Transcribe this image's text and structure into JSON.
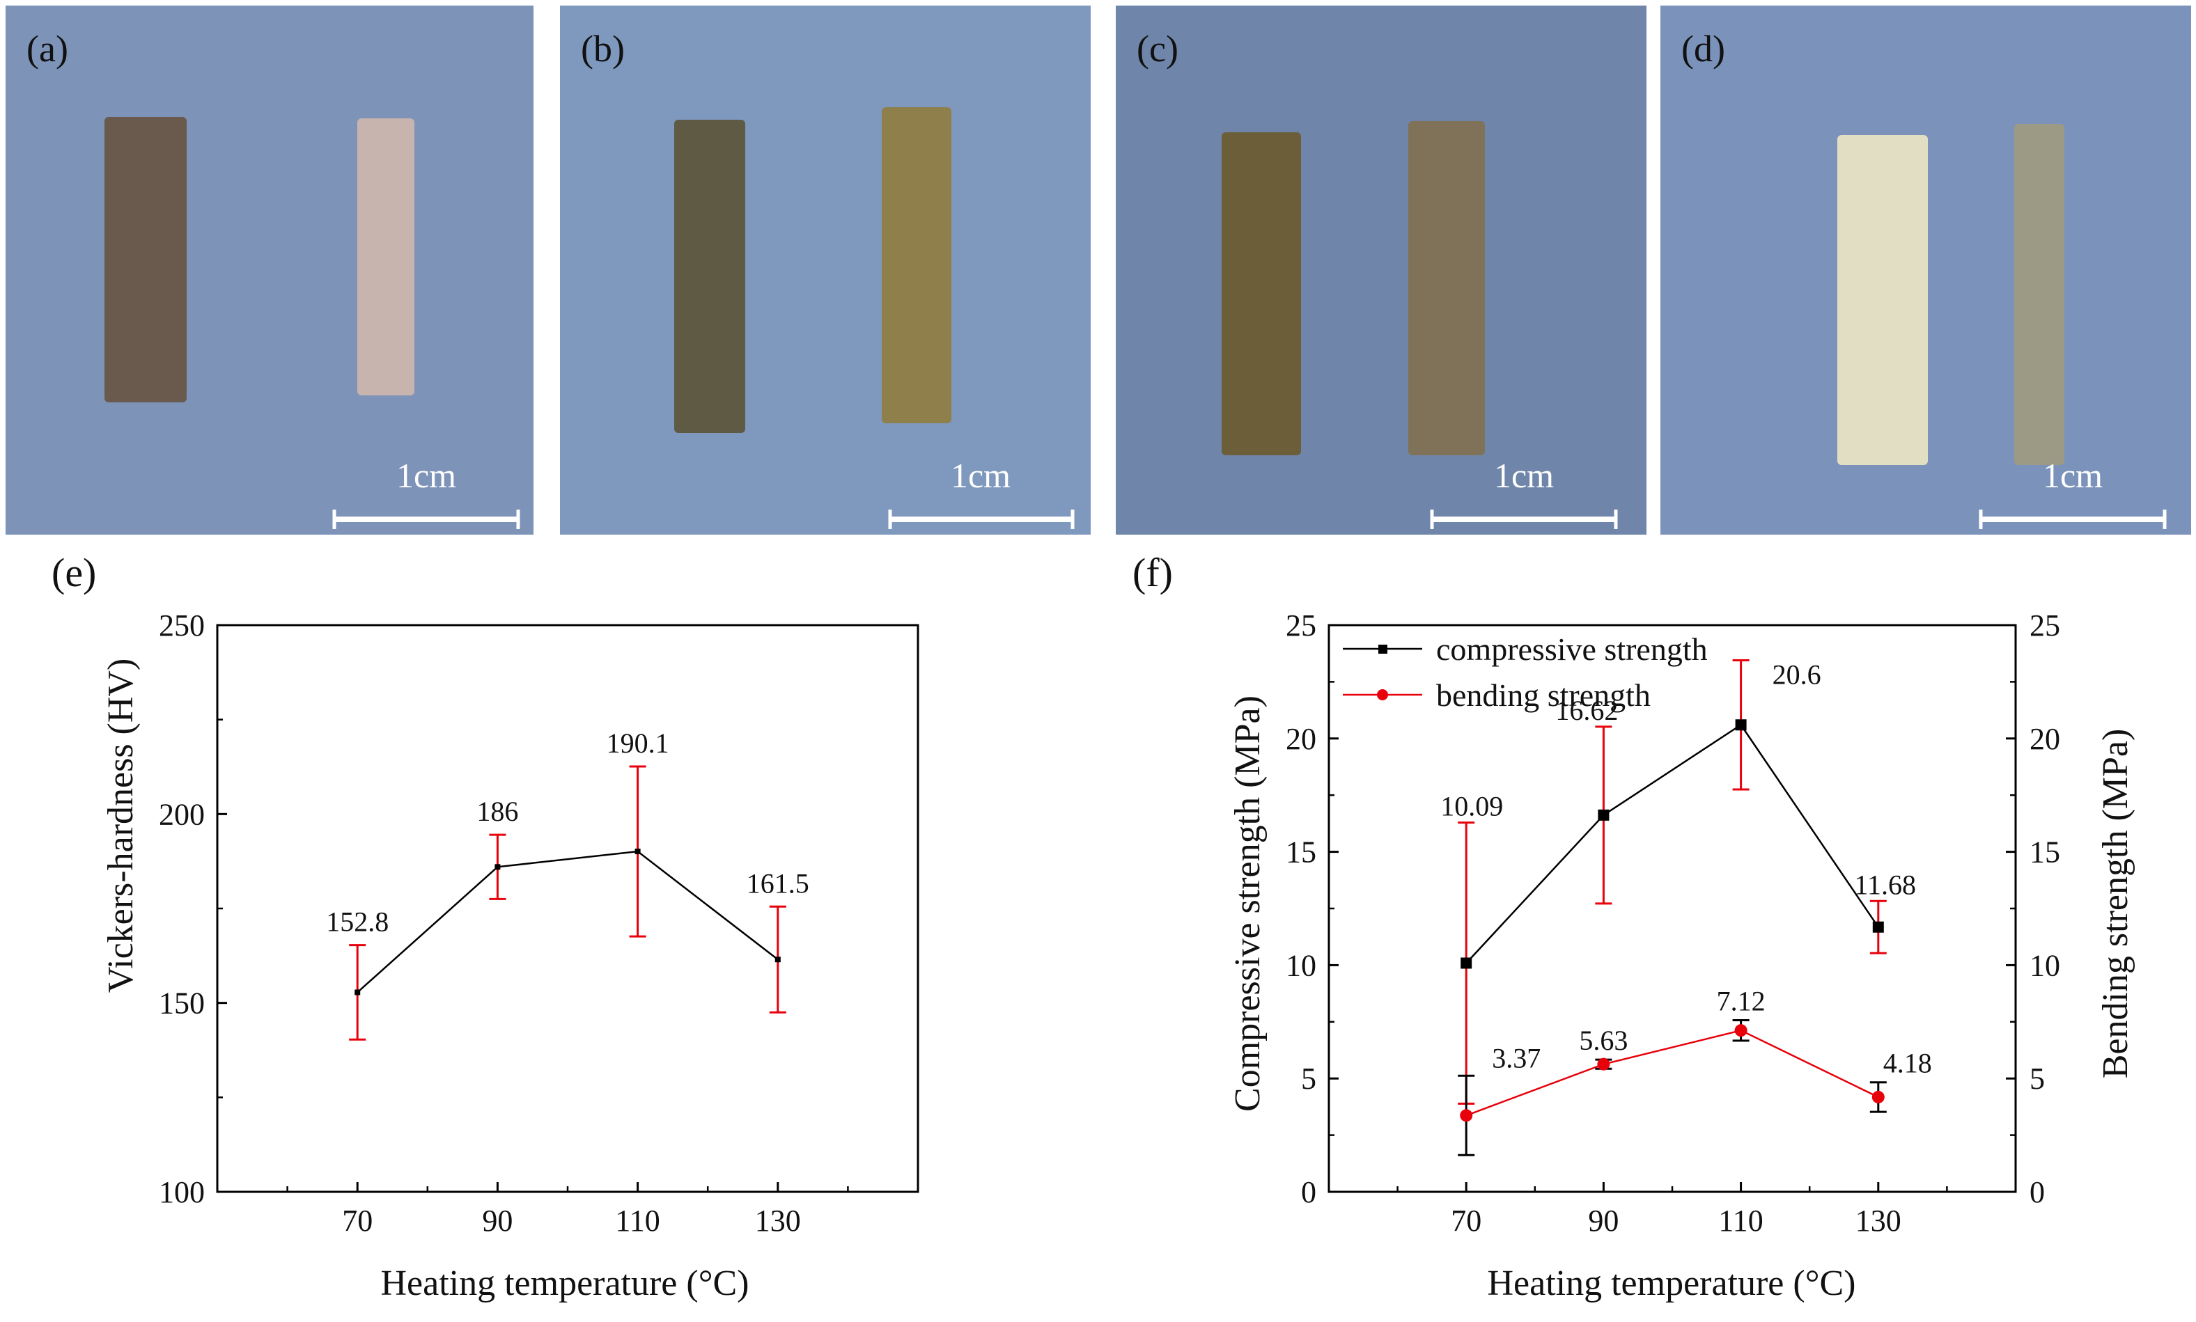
{
  "photos": [
    {
      "label": "(a)",
      "scale_text": "1cm",
      "bg": "#7d93b8",
      "bar_left": "#6a5a4e",
      "bar_right": "#c8b4ae"
    },
    {
      "label": "(b)",
      "scale_text": "1cm",
      "bg": "#7f98be",
      "bar_left": "#5f5a44",
      "bar_right": "#8f7f4a"
    },
    {
      "label": "(c)",
      "scale_text": "1cm",
      "bg": "#6f86aa",
      "bar_left": "#6d5e3a",
      "bar_right": "#7f7258"
    },
    {
      "label": "(d)",
      "scale_text": "1cm",
      "bg": "#7b92bb",
      "bar_left": "#e2dec4",
      "bar_right": "#9c9a84"
    }
  ],
  "chart_data": [
    {
      "panel_label": "(e)",
      "type": "line",
      "x": [
        70,
        90,
        110,
        130
      ],
      "series": [
        {
          "values": [
            152.8,
            186,
            190.1,
            161.5
          ],
          "error": [
            12.5,
            8.5,
            22.5,
            14
          ],
          "line_color": "#000000",
          "error_color": "#e8000b",
          "data_labels": [
            "152.8",
            "186",
            "190.1",
            "161.5"
          ]
        }
      ],
      "xlabel": "Heating temperature (°C)",
      "ylabel": "Vickers-hardness (HV)",
      "xlim": [
        50,
        150
      ],
      "ylim": [
        100,
        250
      ],
      "xticks": [
        "70",
        "90",
        "110",
        "130"
      ],
      "yticks": [
        "100",
        "150",
        "200",
        "250"
      ]
    },
    {
      "panel_label": "(f)",
      "type": "line",
      "x": [
        70,
        90,
        110,
        130
      ],
      "series": [
        {
          "name": "compressive strength",
          "values": [
            10.09,
            16.62,
            20.6,
            11.68
          ],
          "error": [
            6.2,
            3.9,
            2.85,
            1.15
          ],
          "line_color": "#000000",
          "error_color": "#e8000b",
          "marker": "square",
          "data_labels": [
            "10.09",
            "16.62",
            "20.6",
            "11.68"
          ]
        },
        {
          "name": "bending strength",
          "values": [
            3.37,
            5.63,
            7.12,
            4.18
          ],
          "error": [
            1.75,
            0.2,
            0.45,
            0.65
          ],
          "line_color": "#e8000b",
          "error_color": "#000000",
          "marker": "circle",
          "data_labels": [
            "3.37",
            "5.63",
            "7.12",
            "4.18"
          ]
        }
      ],
      "xlabel": "Heating temperature (°C)",
      "ylabel": "Compressive strength (MPa)",
      "ylabel_right": "Bending strength (MPa)",
      "xlim": [
        50,
        150
      ],
      "ylim": [
        0,
        25
      ],
      "xticks": [
        "70",
        "90",
        "110",
        "130"
      ],
      "yticks": [
        "0",
        "5",
        "10",
        "15",
        "20",
        "25"
      ],
      "legend_position": "top-left"
    }
  ]
}
